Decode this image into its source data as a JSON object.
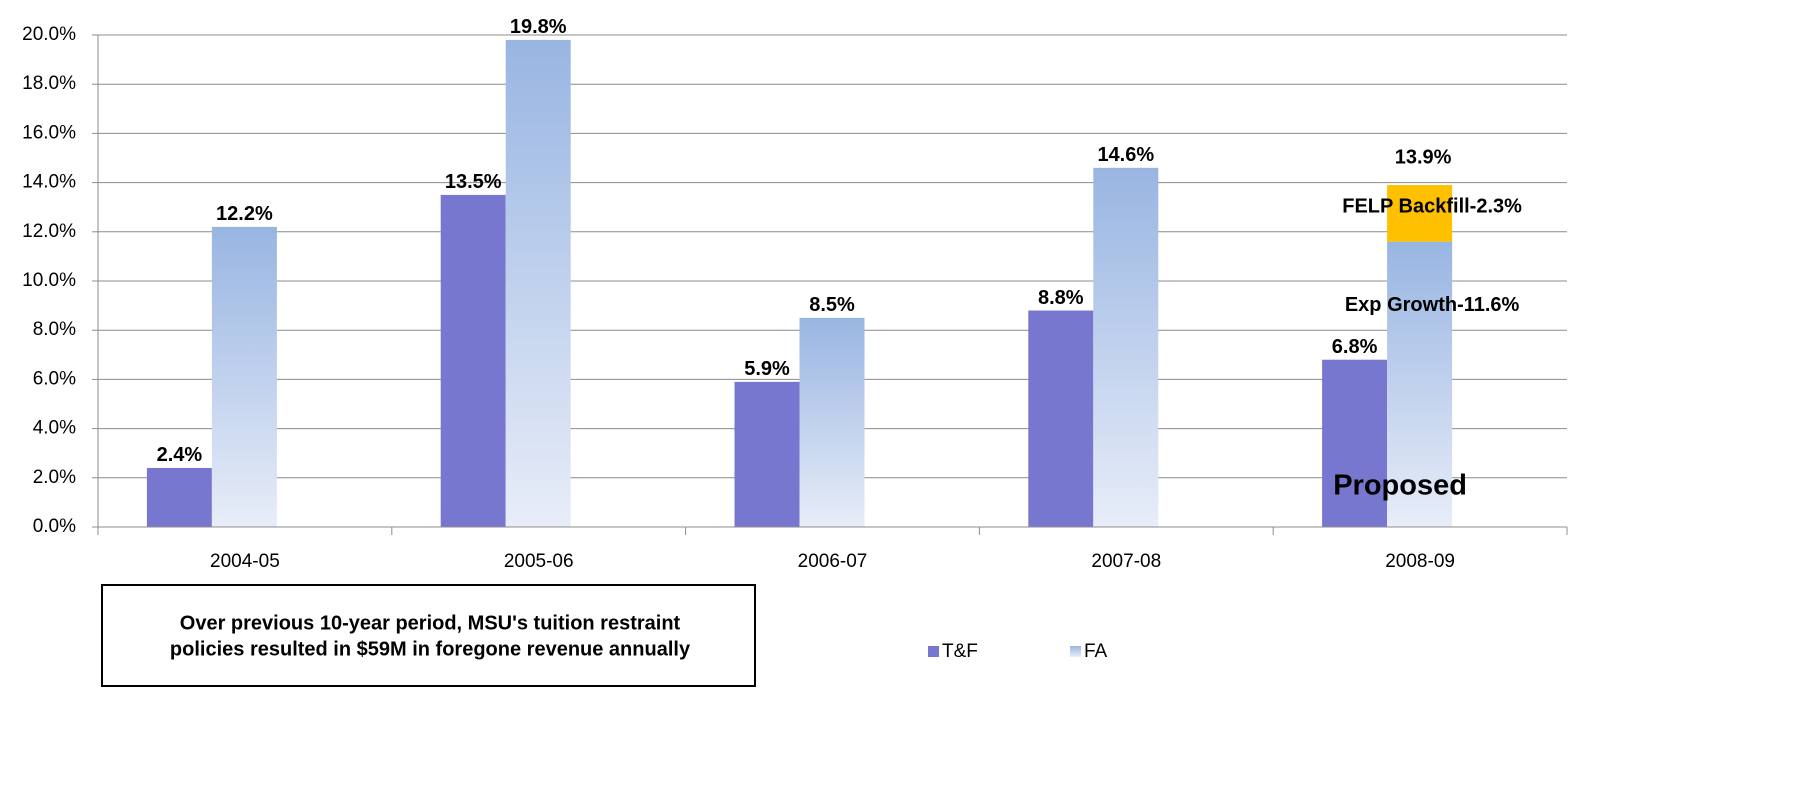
{
  "chart_data": {
    "type": "bar",
    "categories": [
      "2004-05",
      "2005-06",
      "2006-07",
      "2007-08",
      "2008-09"
    ],
    "series": [
      {
        "name": "T&F",
        "color": "#7777d0",
        "values": [
          2.4,
          13.5,
          5.9,
          8.8,
          6.8
        ],
        "value_labels": [
          "2.4%",
          "13.5%",
          "5.9%",
          "8.8%",
          "6.8%"
        ]
      },
      {
        "name": "FA",
        "color": "#a4bde6",
        "gradient": [
          "#98b5e2",
          "#e8edf8"
        ],
        "values": [
          12.2,
          19.8,
          8.5,
          14.6,
          11.6
        ],
        "value_labels": [
          "12.2%",
          "19.8%",
          "8.5%",
          "14.6%",
          "Exp Growth-11.6%"
        ]
      },
      {
        "color": "#ffc000",
        "stack": true,
        "values": [
          null,
          null,
          null,
          null,
          2.3
        ],
        "value_labels": [
          null,
          null,
          null,
          null,
          "FELP Backfill-2.3%"
        ]
      }
    ],
    "ylim": [
      0,
      20
    ],
    "yticks": [
      {
        "value": 0,
        "label": "0.0%"
      },
      {
        "value": 2,
        "label": "2.0%"
      },
      {
        "value": 4,
        "label": "4.0%"
      },
      {
        "value": 6,
        "label": "6.0%"
      },
      {
        "value": 8,
        "label": "8.0%"
      },
      {
        "value": 10,
        "label": "10.0%"
      },
      {
        "value": 12,
        "label": "12.0%"
      },
      {
        "value": 14,
        "label": "14.0%"
      },
      {
        "value": 16,
        "label": "16.0%"
      },
      {
        "value": 18,
        "label": "18.0%"
      },
      {
        "value": 20,
        "label": "20.0%"
      }
    ],
    "grid": true,
    "legend": "bottom",
    "annotations": [
      "13.9%",
      "Proposed"
    ],
    "note": [
      "Over previous 10-year period, MSU's tuition restraint",
      "policies resulted in $59M in foregone revenue annually"
    ]
  }
}
